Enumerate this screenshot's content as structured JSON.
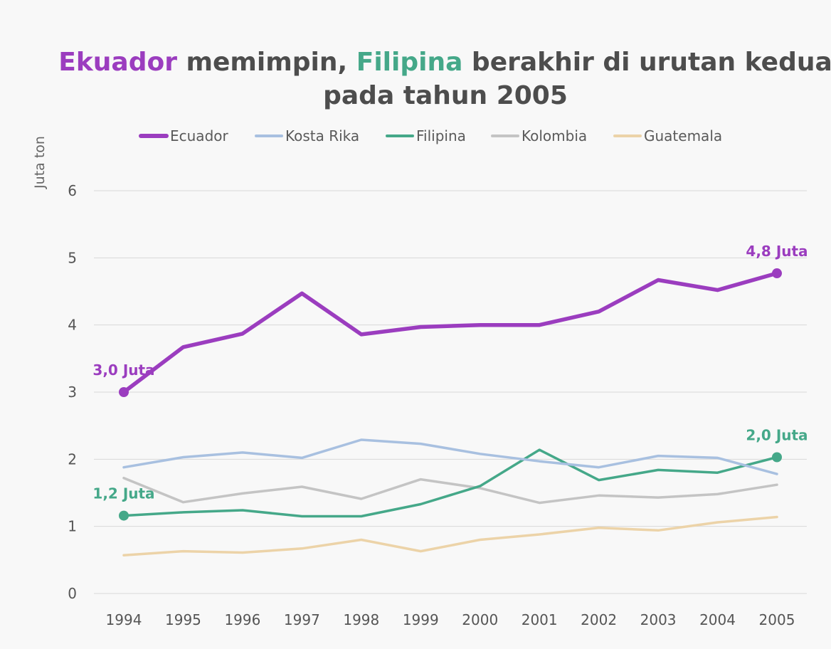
{
  "chart_data": {
    "type": "line",
    "title": {
      "hl1": "Ekuador",
      "part2": " memimpin, ",
      "hl2": "Filipina",
      "part4": " berakhir di urutan kedua",
      "line2": "pada tahun 2005"
    },
    "ylabel": "Juta ton",
    "xlabel": "",
    "ylim": [
      0,
      6
    ],
    "yticks": [
      "0",
      "1",
      "2",
      "3",
      "4",
      "5",
      "6"
    ],
    "categories": [
      "1994",
      "1995",
      "1996",
      "1997",
      "1998",
      "1999",
      "2000",
      "2001",
      "2002",
      "2003",
      "2004",
      "2005"
    ],
    "grid": true,
    "legend_position": "top",
    "series": [
      {
        "name": "Ecuador",
        "color": "#9b3dbf",
        "emphasis": true,
        "values": [
          3.0,
          3.67,
          3.87,
          4.47,
          3.86,
          3.97,
          4.0,
          4.0,
          4.2,
          4.67,
          4.52,
          4.77
        ]
      },
      {
        "name": "Kosta Rika",
        "color": "#a8c0e0",
        "emphasis": false,
        "values": [
          1.88,
          2.03,
          2.1,
          2.02,
          2.29,
          2.23,
          2.08,
          1.97,
          1.88,
          2.05,
          2.02,
          1.78
        ]
      },
      {
        "name": "Filipina",
        "color": "#45a889",
        "emphasis": false,
        "values": [
          1.16,
          1.21,
          1.24,
          1.15,
          1.15,
          1.33,
          1.6,
          2.14,
          1.69,
          1.84,
          1.8,
          2.03
        ]
      },
      {
        "name": "Kolombia",
        "color": "#c4c4c4",
        "emphasis": false,
        "values": [
          1.72,
          1.36,
          1.49,
          1.59,
          1.41,
          1.7,
          1.57,
          1.35,
          1.46,
          1.43,
          1.48,
          1.62
        ]
      },
      {
        "name": "Guatemala",
        "color": "#ecd3a8",
        "emphasis": false,
        "values": [
          0.57,
          0.63,
          0.61,
          0.67,
          0.8,
          0.63,
          0.8,
          0.88,
          0.98,
          0.94,
          1.06,
          1.14
        ]
      }
    ],
    "annotations": [
      {
        "series": "Ecuador",
        "category": "1994",
        "value": 3.0,
        "text": "3,0 Juta",
        "color": "#9b3dbf",
        "anchor": "above"
      },
      {
        "series": "Ecuador",
        "category": "2005",
        "value": 4.77,
        "text": "4,8 Juta",
        "color": "#9b3dbf",
        "anchor": "above"
      },
      {
        "series": "Filipina",
        "category": "1994",
        "value": 1.16,
        "text": "1,2 Juta",
        "color": "#45a889",
        "anchor": "above"
      },
      {
        "series": "Filipina",
        "category": "2005",
        "value": 2.03,
        "text": "2,0 Juta",
        "color": "#45a889",
        "anchor": "above"
      }
    ]
  }
}
